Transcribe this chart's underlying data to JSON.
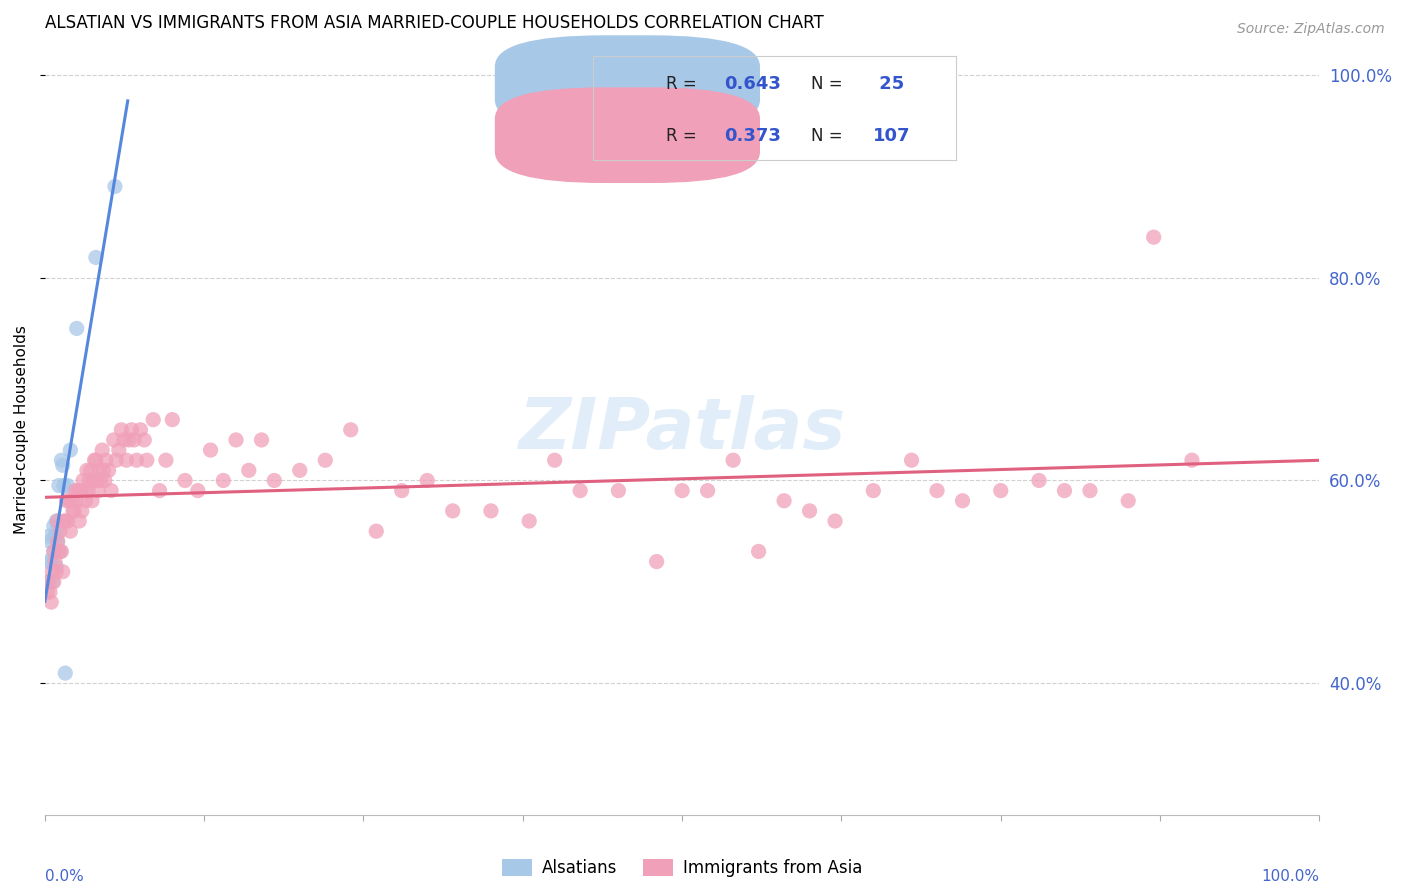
{
  "title": "ALSATIAN VS IMMIGRANTS FROM ASIA MARRIED-COUPLE HOUSEHOLDS CORRELATION CHART",
  "source": "Source: ZipAtlas.com",
  "ylabel": "Married-couple Households",
  "legend_label1": "Alsatians",
  "legend_label2": "Immigrants from Asia",
  "color_blue": "#a8c8e8",
  "color_pink": "#f0a0b8",
  "color_blue_line": "#5588dd",
  "color_pink_line": "#e06080",
  "color_legend_text": "#3355cc",
  "color_ytick": "#4466cc",
  "background_color": "#ffffff",
  "grid_color": "#cccccc",
  "alsatian_x": [
    0.001,
    0.002,
    0.003,
    0.004,
    0.005,
    0.006,
    0.007,
    0.007,
    0.008,
    0.009,
    0.009,
    0.009,
    0.01,
    0.01,
    0.011,
    0.012,
    0.013,
    0.014,
    0.015,
    0.016,
    0.018,
    0.02,
    0.025,
    0.04,
    0.055
  ],
  "alsatian_y": [
    0.5,
    0.52,
    0.545,
    0.54,
    0.52,
    0.5,
    0.555,
    0.53,
    0.545,
    0.515,
    0.545,
    0.56,
    0.555,
    0.54,
    0.595,
    0.53,
    0.62,
    0.615,
    0.595,
    0.41,
    0.595,
    0.63,
    0.75,
    0.82,
    0.89
  ],
  "asia_x": [
    0.002,
    0.003,
    0.004,
    0.005,
    0.006,
    0.007,
    0.007,
    0.008,
    0.009,
    0.01,
    0.01,
    0.011,
    0.012,
    0.013,
    0.014,
    0.015,
    0.016,
    0.017,
    0.018,
    0.019,
    0.02,
    0.021,
    0.022,
    0.023,
    0.024,
    0.025,
    0.026,
    0.027,
    0.028,
    0.029,
    0.03,
    0.031,
    0.032,
    0.033,
    0.034,
    0.035,
    0.036,
    0.037,
    0.038,
    0.039,
    0.04,
    0.041,
    0.042,
    0.043,
    0.044,
    0.045,
    0.046,
    0.047,
    0.048,
    0.05,
    0.052,
    0.054,
    0.056,
    0.058,
    0.06,
    0.062,
    0.064,
    0.066,
    0.068,
    0.07,
    0.072,
    0.075,
    0.078,
    0.08,
    0.085,
    0.09,
    0.095,
    0.1,
    0.11,
    0.12,
    0.13,
    0.14,
    0.15,
    0.16,
    0.17,
    0.18,
    0.2,
    0.22,
    0.24,
    0.26,
    0.28,
    0.3,
    0.32,
    0.35,
    0.38,
    0.4,
    0.42,
    0.45,
    0.48,
    0.5,
    0.52,
    0.54,
    0.56,
    0.58,
    0.6,
    0.62,
    0.65,
    0.68,
    0.7,
    0.72,
    0.75,
    0.78,
    0.8,
    0.82,
    0.85,
    0.87,
    0.9
  ],
  "asia_y": [
    0.49,
    0.5,
    0.49,
    0.48,
    0.51,
    0.5,
    0.53,
    0.52,
    0.51,
    0.54,
    0.56,
    0.53,
    0.55,
    0.53,
    0.51,
    0.56,
    0.56,
    0.58,
    0.56,
    0.58,
    0.55,
    0.58,
    0.57,
    0.57,
    0.59,
    0.58,
    0.59,
    0.56,
    0.59,
    0.57,
    0.6,
    0.59,
    0.58,
    0.61,
    0.59,
    0.6,
    0.61,
    0.58,
    0.6,
    0.62,
    0.62,
    0.6,
    0.59,
    0.61,
    0.6,
    0.63,
    0.61,
    0.6,
    0.62,
    0.61,
    0.59,
    0.64,
    0.62,
    0.63,
    0.65,
    0.64,
    0.62,
    0.64,
    0.65,
    0.64,
    0.62,
    0.65,
    0.64,
    0.62,
    0.66,
    0.59,
    0.62,
    0.66,
    0.6,
    0.59,
    0.63,
    0.6,
    0.64,
    0.61,
    0.64,
    0.6,
    0.61,
    0.62,
    0.65,
    0.55,
    0.59,
    0.6,
    0.57,
    0.57,
    0.56,
    0.62,
    0.59,
    0.59,
    0.52,
    0.59,
    0.59,
    0.62,
    0.53,
    0.58,
    0.57,
    0.56,
    0.59,
    0.62,
    0.59,
    0.58,
    0.59,
    0.6,
    0.59,
    0.59,
    0.58,
    0.84,
    0.62
  ],
  "xlim": [
    0.0,
    1.0
  ],
  "ylim": [
    0.27,
    1.03
  ],
  "yticks": [
    0.4,
    0.6,
    0.8,
    1.0
  ],
  "ytick_labels": [
    "40.0%",
    "60.0%",
    "80.0%",
    "100.0%"
  ],
  "xtick_vals": [
    0.0,
    0.125,
    0.25,
    0.375,
    0.5,
    0.625,
    0.75,
    0.875,
    1.0
  ]
}
